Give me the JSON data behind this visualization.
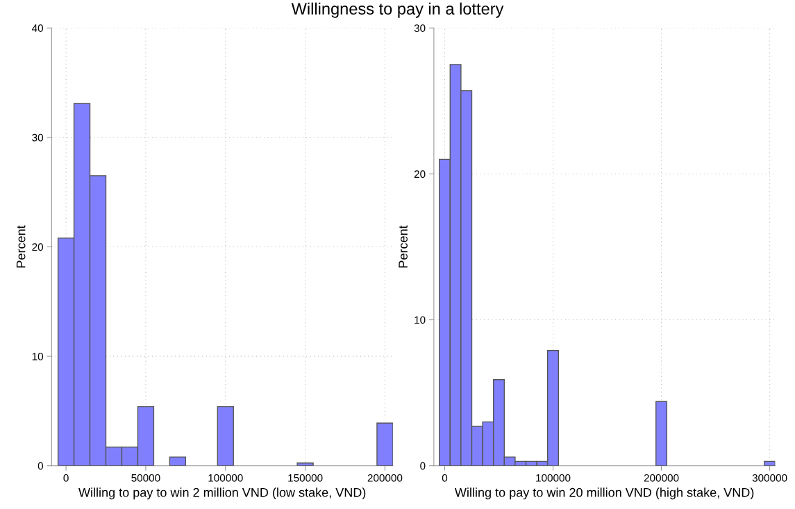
{
  "chart_data": [
    {
      "type": "histogram",
      "title": "Willingness to pay in a lottery",
      "xlabel": "Willing to pay to win 2 million VND (low stake, VND)",
      "ylabel": "Percent",
      "bins": [
        -5000,
        5000,
        15000,
        25000,
        35000,
        45000,
        55000,
        65000,
        75000,
        85000,
        95000,
        105000,
        115000,
        125000,
        135000,
        145000,
        155000,
        165000,
        175000,
        185000,
        195000,
        205000
      ],
      "values": [
        20.8,
        33.1,
        26.5,
        1.7,
        1.7,
        5.4,
        0,
        0.8,
        0,
        0,
        5.4,
        0,
        0,
        0,
        0,
        0.25,
        0,
        0,
        0,
        0,
        3.9
      ],
      "color": "#8080ff",
      "xlim": [
        -9000,
        205000
      ],
      "ylim": [
        0,
        40
      ],
      "xticks": [
        0,
        50000,
        100000,
        150000,
        200000
      ],
      "yticks": [
        0,
        10,
        20,
        30,
        40
      ],
      "grid": true
    },
    {
      "type": "histogram",
      "xlabel": "Willing to pay to win 20 million VND (high stake, VND)",
      "ylabel": "Percent",
      "bins": [
        -5000,
        5000,
        15000,
        25000,
        35000,
        45000,
        55000,
        65000,
        75000,
        85000,
        95000,
        105000,
        115000,
        125000,
        135000,
        145000,
        155000,
        165000,
        175000,
        185000,
        195000,
        205000,
        215000,
        225000,
        235000,
        245000,
        255000,
        265000,
        275000,
        285000,
        295000,
        305000
      ],
      "values": [
        21.0,
        27.5,
        25.7,
        2.7,
        3.0,
        5.9,
        0.6,
        0.3,
        0.3,
        0.3,
        7.9,
        0,
        0,
        0,
        0,
        0,
        0,
        0,
        0,
        0,
        4.4,
        0,
        0,
        0,
        0,
        0,
        0,
        0,
        0,
        0,
        0.3
      ],
      "color": "#8080ff",
      "xlim": [
        -10000,
        305000
      ],
      "ylim": [
        0,
        30
      ],
      "xticks": [
        0,
        100000,
        200000,
        300000
      ],
      "yticks": [
        0,
        10,
        20,
        30
      ],
      "grid": true
    }
  ]
}
